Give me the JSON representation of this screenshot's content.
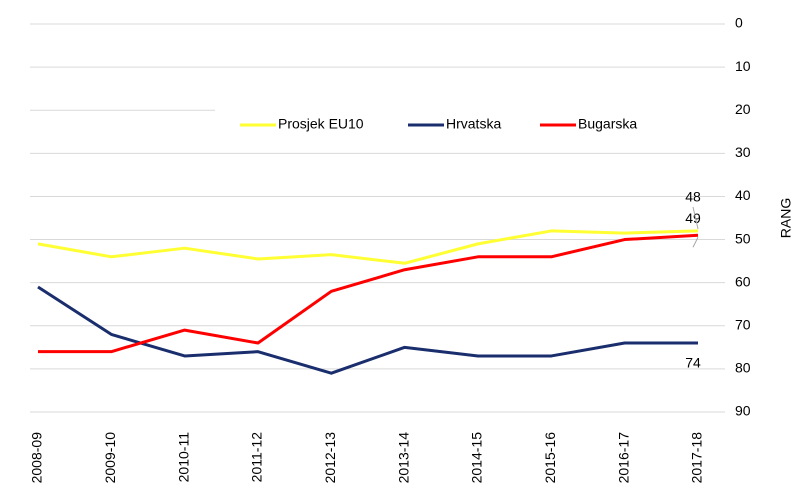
{
  "chart_data": {
    "type": "line",
    "y_axis_label": "RANG",
    "y_inverted": true,
    "y_axis_side": "right",
    "grid": true,
    "legend": "top",
    "categories": [
      "2008-09",
      "2009-10",
      "2010-11",
      "2011-12",
      "2012-13",
      "2013-14",
      "2014-15",
      "2015-16",
      "2016-17",
      "2017-18"
    ],
    "series": [
      {
        "name": "Prosjek EU10",
        "color": "#ffff33",
        "values": [
          51,
          54,
          52,
          54.5,
          53.5,
          55.5,
          51,
          48,
          48.5,
          48
        ]
      },
      {
        "name": "Hrvatska",
        "color": "#1a2e6e",
        "values": [
          61,
          72,
          77,
          76,
          81,
          75,
          77,
          77,
          74,
          74
        ]
      },
      {
        "name": "Bugarska",
        "color": "#ff0000",
        "values": [
          76,
          76,
          71,
          74,
          62,
          57,
          54,
          54,
          50,
          49
        ]
      }
    ],
    "ylim": [
      0,
      90
    ],
    "yticks": [
      0,
      10,
      20,
      30,
      40,
      50,
      60,
      70,
      80,
      90
    ]
  }
}
